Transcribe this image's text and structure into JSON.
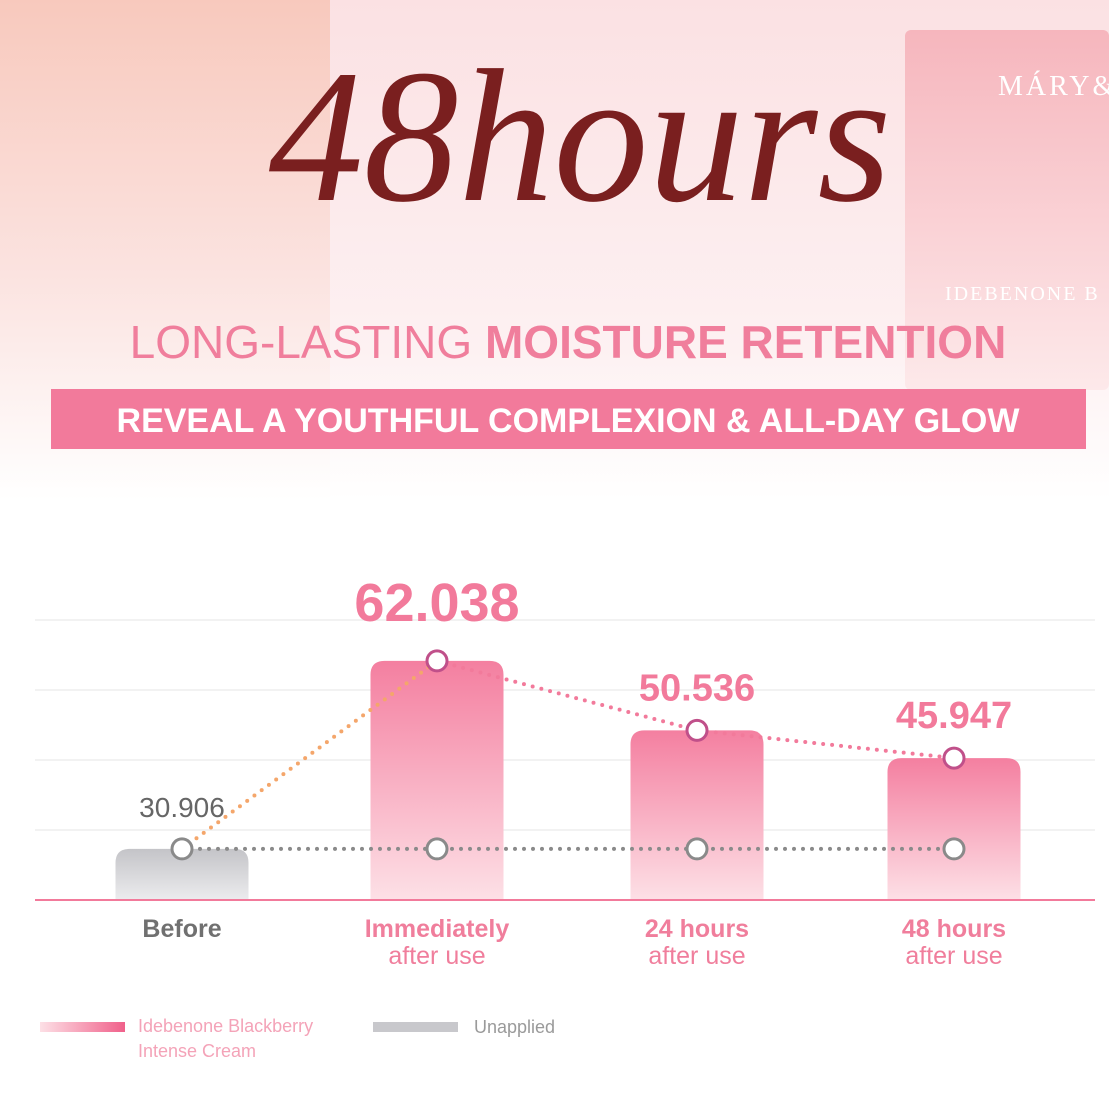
{
  "header": {
    "title": "48hours",
    "subtitle_light": "LONG-LASTING",
    "subtitle_bold": "MOISTURE RETENTION",
    "banner": "REVEAL A YOUTHFUL COMPLEXION & ALL-DAY GLOW",
    "product_brand": "MÁRY&",
    "product_name": "IDEBENONE B"
  },
  "chart_data": {
    "type": "bar",
    "categories": [
      "Before",
      "Immediately",
      "24 hours",
      "48 hours"
    ],
    "category_sublabels": [
      null,
      "after use",
      "after use",
      "after use"
    ],
    "series": [
      {
        "name": "Idebenone Blackberry Intense Cream",
        "color": "#f27a9b",
        "values": [
          null,
          62.038,
          50.536,
          45.947
        ]
      },
      {
        "name": "Unapplied",
        "color": "#c8c8cc",
        "values": [
          30.906,
          30.906,
          30.906,
          30.906
        ]
      }
    ]
  }
}
